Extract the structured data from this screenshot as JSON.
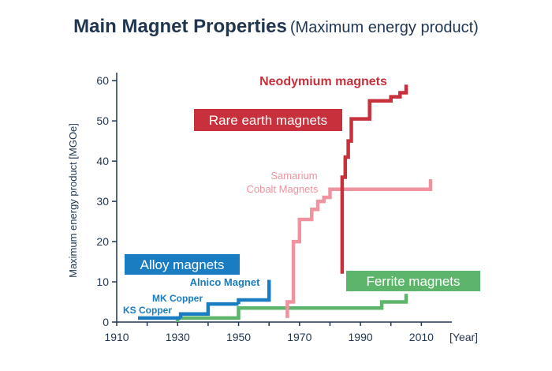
{
  "chart_data": {
    "type": "line",
    "title": "Main Magnet Properties",
    "subtitle": "(Maximum energy product)",
    "xlabel": "[Year]",
    "ylabel": "Maximum energy product [MGOe]",
    "xlim": [
      1910,
      2020
    ],
    "ylim": [
      0,
      62
    ],
    "xticks": [
      1910,
      1930,
      1950,
      1970,
      1990,
      2010
    ],
    "yticks": [
      0,
      10,
      20,
      30,
      40,
      50,
      60
    ],
    "grid": false,
    "colors": {
      "axis": "#1f3550",
      "alloy": "#1a7cc1",
      "ferrite": "#5cb56a",
      "rare_earth": "#c8303b",
      "samarium": "#ef939e",
      "neodymium": "#c8303b"
    },
    "groups": [
      {
        "key": "alloy",
        "label": "Alloy magnets",
        "color": "#1a7cc1"
      },
      {
        "key": "ferrite",
        "label": "Ferrite magnets",
        "color": "#5cb56a"
      },
      {
        "key": "rare_earth",
        "label": "Rare earth magnets",
        "color": "#c8303b"
      }
    ],
    "series": [
      {
        "key": "ks",
        "name": "KS Copper",
        "color": "#1a7cc1",
        "points": [
          [
            1917,
            1
          ],
          [
            1931,
            1
          ]
        ]
      },
      {
        "key": "mk",
        "name": "MK Copper",
        "color": "#1a7cc1",
        "points": [
          [
            1931,
            1
          ],
          [
            1931,
            2
          ],
          [
            1940,
            2
          ],
          [
            1940,
            4.5
          ],
          [
            1950,
            4.5
          ]
        ]
      },
      {
        "key": "alnico",
        "name": "Alnico Magnet",
        "color": "#1a7cc1",
        "points": [
          [
            1950,
            4.5
          ],
          [
            1950,
            5.5
          ],
          [
            1960,
            5.5
          ],
          [
            1960,
            10.5
          ]
        ]
      },
      {
        "key": "ferrite",
        "color": "#5cb56a",
        "points": [
          [
            1930,
            0
          ],
          [
            1930,
            1
          ],
          [
            1950,
            1
          ],
          [
            1950,
            3.5
          ],
          [
            1997,
            3.5
          ],
          [
            1997,
            5
          ],
          [
            2005,
            5
          ],
          [
            2005,
            7
          ]
        ]
      },
      {
        "key": "samarium",
        "name": "Samarium Cobalt Magnets",
        "color": "#ef939e",
        "points": [
          [
            1966,
            1
          ],
          [
            1966,
            5
          ],
          [
            1968,
            5
          ],
          [
            1968,
            20
          ],
          [
            1970,
            20
          ],
          [
            1970,
            25.5
          ],
          [
            1974,
            25.5
          ],
          [
            1974,
            28
          ],
          [
            1976,
            28
          ],
          [
            1976,
            30
          ],
          [
            1978,
            30
          ],
          [
            1978,
            31
          ],
          [
            1980,
            31
          ],
          [
            1980,
            33
          ],
          [
            2013,
            33
          ],
          [
            2013,
            35.5
          ]
        ]
      },
      {
        "key": "neodymium",
        "name": "Neodymium magnets",
        "color": "#c8303b",
        "points": [
          [
            1984,
            12
          ],
          [
            1984,
            36
          ],
          [
            1985,
            36
          ],
          [
            1985,
            41
          ],
          [
            1986,
            41
          ],
          [
            1986,
            45
          ],
          [
            1987,
            45
          ],
          [
            1987,
            50.5
          ],
          [
            1993,
            50.5
          ],
          [
            1993,
            55
          ],
          [
            2000,
            55
          ],
          [
            2000,
            56
          ],
          [
            2003,
            56
          ],
          [
            2003,
            57
          ],
          [
            2005,
            57
          ],
          [
            2005,
            59
          ]
        ]
      }
    ]
  }
}
